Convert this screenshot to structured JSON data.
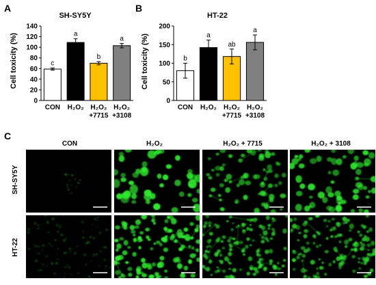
{
  "panels": {
    "a": {
      "letter": "A"
    },
    "b": {
      "letter": "B"
    },
    "c": {
      "letter": "C"
    }
  },
  "chart_data": [
    {
      "type": "bar",
      "title": "SH-SY5Y",
      "ylabel": "Cell toxicity (%)",
      "xlabel": "",
      "ylim": [
        0,
        140
      ],
      "yticks": [
        0,
        20,
        40,
        60,
        80,
        100,
        120,
        140
      ],
      "categories": [
        {
          "main": "CON",
          "sub": ""
        },
        {
          "main": "H₂O₂",
          "sub": ""
        },
        {
          "main": "H₂O₂",
          "sub": "+7715"
        },
        {
          "main": "H₂O₂",
          "sub": "+3108"
        }
      ],
      "values": [
        59,
        109,
        70,
        103
      ],
      "errors": [
        2,
        7,
        3,
        4
      ],
      "letters": [
        "c",
        "a",
        "b",
        "a"
      ],
      "colors": [
        "#ffffff",
        "#000000",
        "#ffc000",
        "#808080"
      ],
      "grid": false
    },
    {
      "type": "bar",
      "title": "HT-22",
      "ylabel": "Cell toxicity (%)",
      "xlabel": "",
      "ylim": [
        0,
        200
      ],
      "yticks": [
        0,
        50,
        100,
        150,
        200
      ],
      "categories": [
        {
          "main": "CON",
          "sub": ""
        },
        {
          "main": "H₂O₂",
          "sub": ""
        },
        {
          "main": "H₂O₂",
          "sub": "+7715"
        },
        {
          "main": "H₂O₂",
          "sub": "+3108"
        }
      ],
      "values": [
        80,
        142,
        118,
        156
      ],
      "errors": [
        20,
        20,
        20,
        20
      ],
      "letters": [
        "b",
        "a",
        "ab",
        "a"
      ],
      "colors": [
        "#ffffff",
        "#000000",
        "#ffc000",
        "#808080"
      ],
      "grid": false
    }
  ],
  "micrographs": {
    "columns": [
      "CON",
      "H₂O₂",
      "H₂O₂ + 7715",
      "H₂O₂ + 3108"
    ],
    "rows": [
      "SH-SY5Y",
      "HT-22"
    ],
    "fluorescence_color": "#2ee82e"
  }
}
